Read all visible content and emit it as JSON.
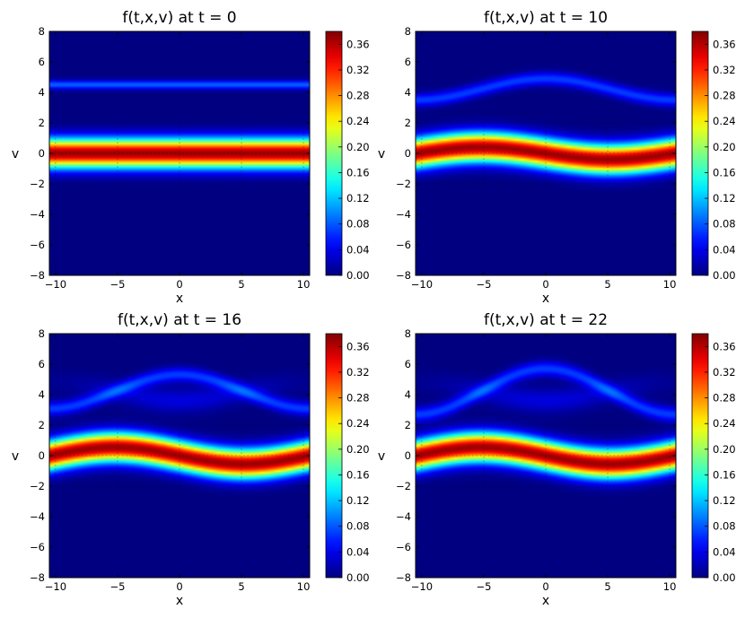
{
  "chart_data": [
    {
      "type": "heatmap",
      "title": "f(t,x,v) at t = 0",
      "xlabel": "x",
      "ylabel": "v",
      "xlim": [
        -10.5,
        10.5
      ],
      "ylim": [
        -8,
        8
      ],
      "x_ticks": [
        "−10",
        "−5",
        "0",
        "5",
        "10"
      ],
      "y_ticks": [
        "−8",
        "−6",
        "−4",
        "−2",
        "0",
        "2",
        "4",
        "6",
        "8"
      ],
      "colorbar": {
        "range": [
          0,
          0.38
        ],
        "ticks": [
          "0.00",
          "0.04",
          "0.08",
          "0.12",
          "0.16",
          "0.20",
          "0.24",
          "0.28",
          "0.32",
          "0.36"
        ],
        "colormap": "jet"
      },
      "t": 0
    },
    {
      "type": "heatmap",
      "title": "f(t,x,v) at t = 10",
      "xlabel": "x",
      "ylabel": "v",
      "xlim": [
        -10.5,
        10.5
      ],
      "ylim": [
        -8,
        8
      ],
      "x_ticks": [
        "−10",
        "−5",
        "0",
        "5",
        "10"
      ],
      "y_ticks": [
        "−8",
        "−6",
        "−4",
        "−2",
        "0",
        "2",
        "4",
        "6",
        "8"
      ],
      "colorbar": {
        "range": [
          0,
          0.38
        ],
        "ticks": [
          "0.00",
          "0.04",
          "0.08",
          "0.12",
          "0.16",
          "0.20",
          "0.24",
          "0.28",
          "0.32",
          "0.36"
        ],
        "colormap": "jet"
      },
      "t": 10
    },
    {
      "type": "heatmap",
      "title": "f(t,x,v) at t = 16",
      "xlabel": "x",
      "ylabel": "v",
      "xlim": [
        -10.5,
        10.5
      ],
      "ylim": [
        -8,
        8
      ],
      "x_ticks": [
        "−10",
        "−5",
        "0",
        "5",
        "10"
      ],
      "y_ticks": [
        "−8",
        "−6",
        "−4",
        "−2",
        "0",
        "2",
        "4",
        "6",
        "8"
      ],
      "colorbar": {
        "range": [
          0,
          0.38
        ],
        "ticks": [
          "0.00",
          "0.04",
          "0.08",
          "0.12",
          "0.16",
          "0.20",
          "0.24",
          "0.28",
          "0.32",
          "0.36"
        ],
        "colormap": "jet"
      },
      "t": 16
    },
    {
      "type": "heatmap",
      "title": "f(t,x,v) at t = 22",
      "xlabel": "x",
      "ylabel": "v",
      "xlim": [
        -10.5,
        10.5
      ],
      "ylim": [
        -8,
        8
      ],
      "x_ticks": [
        "−10",
        "−5",
        "0",
        "5",
        "10"
      ],
      "y_ticks": [
        "−8",
        "−6",
        "−4",
        "−2",
        "0",
        "2",
        "4",
        "6",
        "8"
      ],
      "colorbar": {
        "range": [
          0,
          0.38
        ],
        "ticks": [
          "0.00",
          "0.04",
          "0.08",
          "0.12",
          "0.16",
          "0.20",
          "0.24",
          "0.28",
          "0.32",
          "0.36"
        ],
        "colormap": "jet"
      },
      "t": 22
    }
  ]
}
